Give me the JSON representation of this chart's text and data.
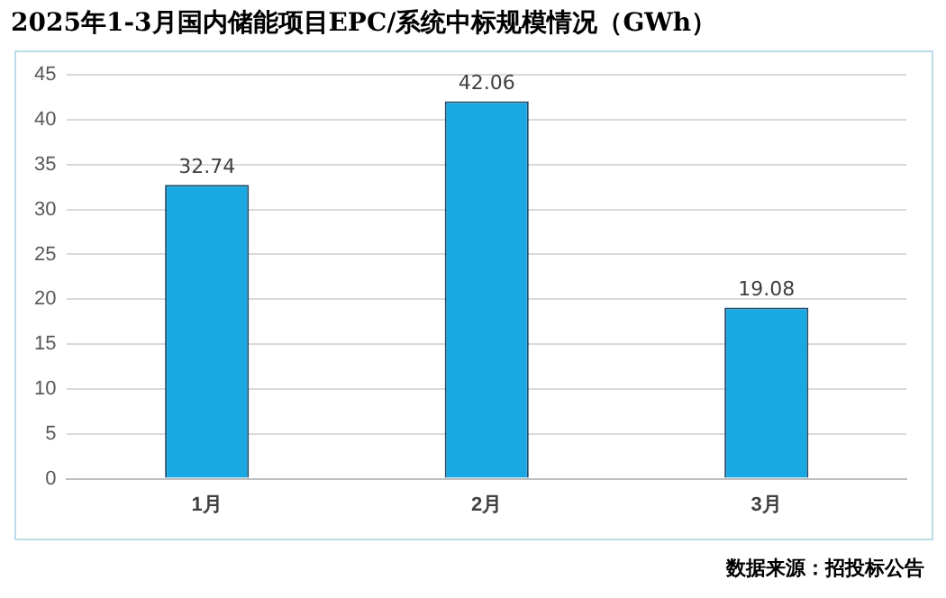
{
  "chart_data": {
    "type": "bar",
    "title": "2025年1-3月国内储能项目EPC/系统中标规模情况（GWh）",
    "categories": [
      "1月",
      "2月",
      "3月"
    ],
    "values": [
      32.74,
      42.06,
      19.08
    ],
    "color": "#1aa8e2",
    "ylim": [
      0,
      45
    ],
    "yticks": [
      0,
      5,
      10,
      15,
      20,
      25,
      30,
      35,
      40,
      45
    ],
    "grid": "y",
    "data_labels": true,
    "annotations": [
      "数据来源：招投标公告"
    ]
  }
}
